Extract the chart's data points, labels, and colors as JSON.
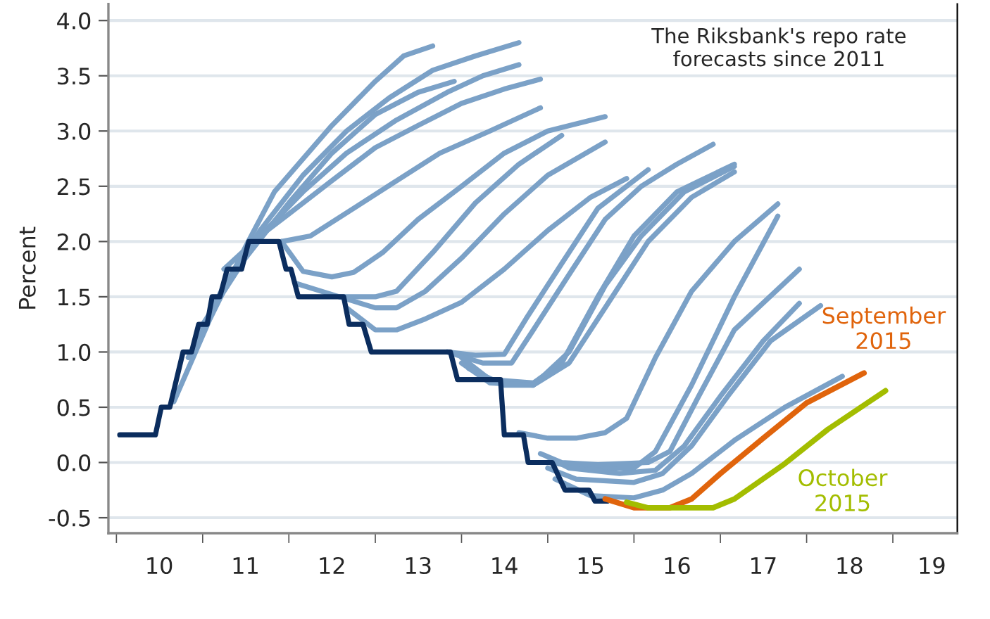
{
  "chart_data": {
    "type": "line",
    "title": "The Riksbank's repo rate forecasts since 2011",
    "ylabel": "Percent",
    "xlim": [
      "2009-11-28",
      "2019-10-01"
    ],
    "ylim": [
      -0.64,
      4.15
    ],
    "xticks": [
      {
        "value": "2010-01-01",
        "label": null
      },
      {
        "value": "2011-01-01",
        "label": null
      },
      {
        "value": "2012-01-01",
        "label": null
      },
      {
        "value": "2013-01-01",
        "label": null
      },
      {
        "value": "2014-01-01",
        "label": null
      },
      {
        "value": "2015-01-01",
        "label": null
      },
      {
        "value": "2016-01-01",
        "label": null
      },
      {
        "value": "2017-01-01",
        "label": null
      },
      {
        "value": "2018-01-01",
        "label": null
      },
      {
        "value": "2019-01-01",
        "label": null
      },
      {
        "value": "2010-07-01",
        "label": "10"
      },
      {
        "value": "2011-07-01",
        "label": "11"
      },
      {
        "value": "2012-07-01",
        "label": "12"
      },
      {
        "value": "2013-07-01",
        "label": "13"
      },
      {
        "value": "2014-07-01",
        "label": "14"
      },
      {
        "value": "2015-07-01",
        "label": "15"
      },
      {
        "value": "2016-07-01",
        "label": "16"
      },
      {
        "value": "2017-07-01",
        "label": "17"
      },
      {
        "value": "2018-07-01",
        "label": "18"
      },
      {
        "value": "2019-06-15",
        "label": "19"
      }
    ],
    "yticks": [
      {
        "value": -0.5,
        "label": "-0.5"
      },
      {
        "value": 0,
        "label": "0.0"
      },
      {
        "value": 0.5,
        "label": "0.5"
      },
      {
        "value": 1,
        "label": "1.0"
      },
      {
        "value": 1.5,
        "label": "1.5"
      },
      {
        "value": 2,
        "label": "2.0"
      },
      {
        "value": 2.5,
        "label": "2.5"
      },
      {
        "value": 3,
        "label": "3.0"
      },
      {
        "value": 3.5,
        "label": "3.5"
      },
      {
        "value": 4,
        "label": "4.0"
      }
    ],
    "grid": "y",
    "series": [
      {
        "color": "#7ba1c7",
        "x": [
          "2010-09",
          "2011-02",
          "2011-07",
          "2011-11",
          "2012-07",
          "2013-01",
          "2013-05",
          "2013-09"
        ],
        "values": [
          0.55,
          1.3,
          1.95,
          2.45,
          3.05,
          3.45,
          3.68,
          3.77
        ]
      },
      {
        "color": "#7ba1c7",
        "x": [
          "2010-11",
          "2011-04",
          "2011-09",
          "2012-03",
          "2012-09",
          "2013-03",
          "2013-09",
          "2014-03",
          "2014-09"
        ],
        "values": [
          0.95,
          1.6,
          2.1,
          2.6,
          3.0,
          3.3,
          3.55,
          3.68,
          3.8
        ]
      },
      {
        "color": "#7ba1c7",
        "x": [
          "2011-01",
          "2011-07",
          "2012-01",
          "2012-07",
          "2013-01",
          "2013-07",
          "2013-12"
        ],
        "values": [
          1.25,
          1.85,
          2.35,
          2.8,
          3.15,
          3.35,
          3.45
        ]
      },
      {
        "color": "#7ba1c7",
        "x": [
          "2011-04",
          "2011-09",
          "2012-03",
          "2012-09",
          "2013-04",
          "2013-11",
          "2014-04",
          "2014-09"
        ],
        "values": [
          1.75,
          2.05,
          2.45,
          2.8,
          3.1,
          3.35,
          3.5,
          3.6
        ]
      },
      {
        "color": "#7ba1c7",
        "x": [
          "2011-08",
          "2012-01",
          "2012-07",
          "2013-01",
          "2013-07",
          "2014-01",
          "2014-07",
          "2014-12"
        ],
        "values": [
          2.0,
          2.25,
          2.55,
          2.85,
          3.05,
          3.25,
          3.38,
          3.47
        ]
      },
      {
        "color": "#7ba1c7",
        "x": [
          "2011-12",
          "2012-04",
          "2012-10",
          "2013-04",
          "2013-10",
          "2014-05",
          "2014-12"
        ],
        "values": [
          2.0,
          2.05,
          2.3,
          2.55,
          2.8,
          3.0,
          3.21
        ]
      },
      {
        "color": "#7ba1c7",
        "x": [
          "2011-12",
          "2012-03",
          "2012-07",
          "2012-10",
          "2013-02",
          "2013-07",
          "2014-01",
          "2014-07",
          "2015-01",
          "2015-09"
        ],
        "values": [
          2.0,
          1.73,
          1.68,
          1.72,
          1.9,
          2.2,
          2.5,
          2.8,
          3.0,
          3.13
        ]
      },
      {
        "color": "#7ba1c7",
        "x": [
          "2012-02",
          "2012-08",
          "2013-01",
          "2013-04",
          "2013-09",
          "2014-03",
          "2014-09",
          "2015-03"
        ],
        "values": [
          1.62,
          1.5,
          1.5,
          1.55,
          1.9,
          2.35,
          2.7,
          2.96
        ]
      },
      {
        "color": "#7ba1c7",
        "x": [
          "2012-08",
          "2013-01",
          "2013-04",
          "2013-08",
          "2014-01",
          "2014-07",
          "2015-01",
          "2015-09"
        ],
        "values": [
          1.5,
          1.4,
          1.4,
          1.55,
          1.85,
          2.25,
          2.6,
          2.9
        ]
      },
      {
        "color": "#7ba1c7",
        "x": [
          "2012-09",
          "2013-01",
          "2013-04",
          "2013-08",
          "2014-01",
          "2014-07",
          "2015-01",
          "2015-07",
          "2015-12"
        ],
        "values": [
          1.4,
          1.2,
          1.2,
          1.3,
          1.45,
          1.75,
          2.1,
          2.4,
          2.57
        ]
      },
      {
        "color": "#7ba1c7",
        "x": [
          "2013-11",
          "2014-03",
          "2014-07",
          "2014-10",
          "2015-03",
          "2015-08",
          "2016-03"
        ],
        "values": [
          1.0,
          0.97,
          0.98,
          1.3,
          1.8,
          2.3,
          2.65
        ]
      },
      {
        "color": "#7ba1c7",
        "x": [
          "2013-11",
          "2014-04",
          "2014-08",
          "2014-11",
          "2015-04",
          "2015-09",
          "2016-02",
          "2016-07",
          "2016-12"
        ],
        "values": [
          1.0,
          0.9,
          0.9,
          1.2,
          1.7,
          2.2,
          2.5,
          2.7,
          2.88
        ]
      },
      {
        "color": "#7ba1c7",
        "x": [
          "2014-01",
          "2014-05",
          "2014-11",
          "2015-03",
          "2015-08",
          "2016-01",
          "2016-07",
          "2017-03"
        ],
        "values": [
          0.95,
          0.75,
          0.72,
          0.9,
          1.5,
          2.05,
          2.45,
          2.7
        ]
      },
      {
        "color": "#7ba1c7",
        "x": [
          "2014-01",
          "2014-05",
          "2014-11",
          "2015-04",
          "2015-09",
          "2016-02",
          "2016-08",
          "2017-03"
        ],
        "values": [
          0.9,
          0.72,
          0.7,
          1.0,
          1.6,
          2.05,
          2.45,
          2.68
        ]
      },
      {
        "color": "#7ba1c7",
        "x": [
          "2014-02",
          "2014-07",
          "2014-11",
          "2015-04",
          "2015-09",
          "2016-03",
          "2016-09",
          "2017-03"
        ],
        "values": [
          0.85,
          0.7,
          0.7,
          0.9,
          1.4,
          2.0,
          2.4,
          2.63
        ]
      },
      {
        "color": "#7ba1c7",
        "x": [
          "2014-09",
          "2015-01",
          "2015-05",
          "2015-09",
          "2015-12",
          "2016-04",
          "2016-09",
          "2017-03",
          "2017-09"
        ],
        "values": [
          0.27,
          0.22,
          0.22,
          0.27,
          0.4,
          0.95,
          1.55,
          2.0,
          2.34
        ]
      },
      {
        "color": "#7ba1c7",
        "x": [
          "2015-01",
          "2015-07",
          "2016-01",
          "2016-04",
          "2016-09",
          "2017-03",
          "2017-09"
        ],
        "values": [
          0.0,
          -0.05,
          -0.05,
          0.1,
          0.7,
          1.5,
          2.23
        ]
      },
      {
        "color": "#7ba1c7",
        "x": [
          "2014-12",
          "2015-03",
          "2015-08",
          "2016-03",
          "2016-06",
          "2016-10",
          "2017-03",
          "2017-12"
        ],
        "values": [
          0.08,
          0.0,
          -0.02,
          0.0,
          0.1,
          0.6,
          1.2,
          1.75
        ]
      },
      {
        "color": "#7ba1c7",
        "x": [
          "2015-01",
          "2015-04",
          "2015-11",
          "2016-04",
          "2016-08",
          "2017-01",
          "2017-07",
          "2017-12"
        ],
        "values": [
          0.05,
          -0.05,
          -0.1,
          -0.07,
          0.15,
          0.6,
          1.1,
          1.44
        ]
      },
      {
        "color": "#7ba1c7",
        "x": [
          "2015-01",
          "2015-05",
          "2016-01",
          "2016-05",
          "2016-09",
          "2017-02",
          "2017-08",
          "2018-03"
        ],
        "values": [
          -0.05,
          -0.15,
          -0.18,
          -0.1,
          0.15,
          0.6,
          1.1,
          1.42
        ]
      },
      {
        "color": "#7ba1c7",
        "x": [
          "2015-02",
          "2015-07",
          "2016-01",
          "2016-05",
          "2016-09",
          "2017-03",
          "2017-10",
          "2018-06"
        ],
        "values": [
          -0.15,
          -0.3,
          -0.32,
          -0.25,
          -0.1,
          0.2,
          0.5,
          0.78
        ]
      },
      {
        "color": "#0b2d5e",
        "x": [
          "2010-01-15",
          "2010-06-15",
          "2010-07-10",
          "2010-08-15",
          "2010-10-10",
          "2010-11-15",
          "2010-12-15",
          "2011-01-20",
          "2011-02-10",
          "2011-03-15",
          "2011-04-15",
          "2011-06-15",
          "2011-07-15",
          "2011-11-20",
          "2011-12-20",
          "2012-01-10",
          "2012-02-10",
          "2012-08-20",
          "2012-09-12",
          "2012-11-10",
          "2012-12-15",
          "2013-11-15",
          "2013-12-15",
          "2014-06-15",
          "2014-07-01",
          "2014-09-20",
          "2014-10-10",
          "2015-01-20",
          "2015-03-15",
          "2015-06-25",
          "2015-07-20",
          "2015-09-10"
        ],
        "values": [
          0.25,
          0.25,
          0.5,
          0.5,
          1.0,
          1.0,
          1.25,
          1.25,
          1.5,
          1.5,
          1.75,
          1.75,
          2.0,
          2.0,
          1.75,
          1.75,
          1.5,
          1.5,
          1.25,
          1.25,
          1.0,
          1.0,
          0.75,
          0.75,
          0.25,
          0.25,
          0.0,
          0.0,
          -0.25,
          -0.25,
          -0.35,
          -0.35
        ]
      },
      {
        "name": "September 2015",
        "color": "#e0640c",
        "x": [
          "2015-09",
          "2016-01",
          "2016-06",
          "2016-09",
          "2017-01",
          "2017-07",
          "2018-01",
          "2018-09"
        ],
        "values": [
          -0.33,
          -0.41,
          -0.41,
          -0.33,
          -0.1,
          0.22,
          0.54,
          0.81
        ]
      },
      {
        "name": "October 2015",
        "color": "#a3bd00",
        "x": [
          "2015-12",
          "2016-03",
          "2016-12",
          "2017-03",
          "2017-10",
          "2018-04",
          "2018-12"
        ],
        "values": [
          -0.36,
          -0.41,
          -0.41,
          -0.33,
          -0.01,
          0.3,
          0.65
        ]
      }
    ]
  }
}
